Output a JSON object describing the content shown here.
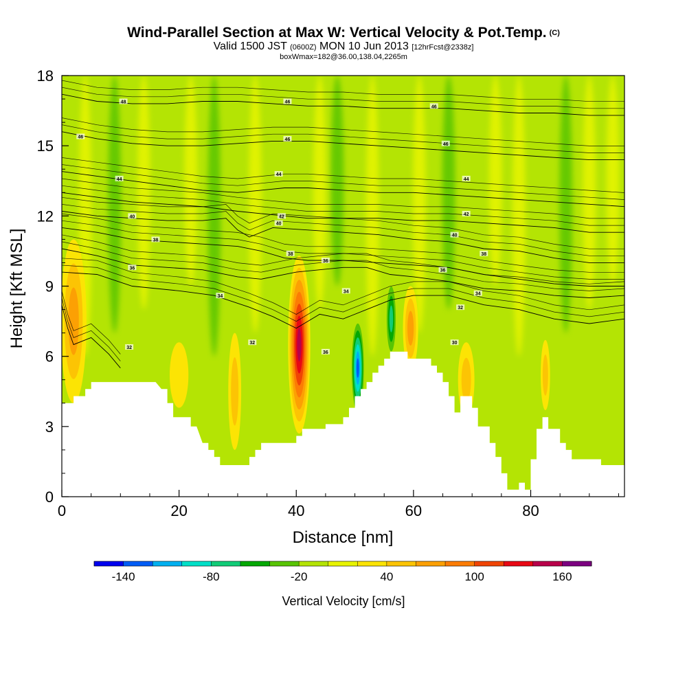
{
  "title": {
    "main": "Wind-Parallel Section at Max W: Vertical Velocity & Pot.Temp.",
    "mark": "(C)",
    "valid": "Valid 1500 JST",
    "valid_utc": "(0600Z)",
    "valid_date": "MON 10 Jun 2013",
    "forecast": "[12hrFcst@2338z]",
    "box": "boxWmax=182@36.00,138.04,2265m"
  },
  "chart_data": {
    "type": "heatmap",
    "xlabel": "Distance [nm]",
    "ylabel": "Height [Kft MSL]",
    "xlim": [
      0,
      96
    ],
    "ylim": [
      0,
      18
    ],
    "x_ticks": [
      0,
      20,
      40,
      60,
      80
    ],
    "y_ticks": [
      0,
      3,
      6,
      9,
      12,
      15,
      18
    ],
    "terrain": [
      [
        0,
        4
      ],
      [
        1,
        4
      ],
      [
        2,
        4
      ],
      [
        2,
        4.3
      ],
      [
        4,
        4.3
      ],
      [
        4,
        4.6
      ],
      [
        5,
        4.6
      ],
      [
        5,
        4.9
      ],
      [
        16,
        4.9
      ],
      [
        17,
        4.6
      ],
      [
        18,
        4.6
      ],
      [
        18,
        4.0
      ],
      [
        19,
        4.0
      ],
      [
        19,
        3.4
      ],
      [
        22,
        3.4
      ],
      [
        22,
        3.0
      ],
      [
        23,
        3.0
      ],
      [
        24,
        2.3
      ],
      [
        25,
        2.3
      ],
      [
        25,
        2.0
      ],
      [
        26,
        2.0
      ],
      [
        26,
        1.7
      ],
      [
        27,
        1.7
      ],
      [
        27,
        1.35
      ],
      [
        31,
        1.35
      ],
      [
        32,
        1.35
      ],
      [
        32,
        1.7
      ],
      [
        33,
        1.7
      ],
      [
        33,
        2.0
      ],
      [
        34,
        2.0
      ],
      [
        34,
        2.3
      ],
      [
        38,
        2.3
      ],
      [
        39,
        2.3
      ],
      [
        40,
        2.3
      ],
      [
        40,
        2.6
      ],
      [
        41,
        2.6
      ],
      [
        41,
        2.9
      ],
      [
        43,
        2.9
      ],
      [
        45,
        2.9
      ],
      [
        45,
        3.1
      ],
      [
        48,
        3.1
      ],
      [
        48,
        3.4
      ],
      [
        49,
        3.4
      ],
      [
        49,
        3.8
      ],
      [
        50,
        3.8
      ],
      [
        50,
        4.3
      ],
      [
        51,
        4.3
      ],
      [
        51,
        4.6
      ],
      [
        52,
        4.6
      ],
      [
        52,
        4.9
      ],
      [
        53,
        4.9
      ],
      [
        53,
        5.3
      ],
      [
        54,
        5.3
      ],
      [
        54,
        5.6
      ],
      [
        55,
        5.6
      ],
      [
        55,
        5.9
      ],
      [
        56,
        5.9
      ],
      [
        56,
        6.2
      ],
      [
        59,
        6.2
      ],
      [
        59,
        5.9
      ],
      [
        63,
        5.9
      ],
      [
        63,
        5.6
      ],
      [
        64,
        5.6
      ],
      [
        64,
        5.3
      ],
      [
        65,
        5.3
      ],
      [
        65,
        4.9
      ],
      [
        66,
        4.9
      ],
      [
        66,
        4.3
      ],
      [
        67,
        4.3
      ],
      [
        67,
        3.6
      ],
      [
        68,
        3.6
      ],
      [
        68,
        4.3
      ],
      [
        70,
        4.3
      ],
      [
        70,
        3.8
      ],
      [
        71,
        3.8
      ],
      [
        71,
        3.0
      ],
      [
        73,
        3.0
      ],
      [
        73,
        2.3
      ],
      [
        74,
        2.3
      ],
      [
        74,
        1.7
      ],
      [
        75,
        1.7
      ],
      [
        75,
        1.0
      ],
      [
        76,
        1.0
      ],
      [
        76,
        0.3
      ],
      [
        78,
        0.3
      ],
      [
        78,
        0.6
      ],
      [
        79,
        0.6
      ],
      [
        79,
        0.3
      ],
      [
        80,
        0.3
      ],
      [
        80,
        1.6
      ],
      [
        81,
        1.6
      ],
      [
        81,
        2.9
      ],
      [
        82,
        2.9
      ],
      [
        82,
        3.4
      ],
      [
        83,
        3.4
      ],
      [
        83,
        2.9
      ],
      [
        85,
        2.9
      ],
      [
        85,
        2.3
      ],
      [
        86,
        2.3
      ],
      [
        86,
        2.0
      ],
      [
        87,
        2.0
      ],
      [
        87,
        1.6
      ],
      [
        92,
        1.6
      ],
      [
        92,
        1.35
      ],
      [
        96,
        1.35
      ],
      [
        96,
        0
      ]
    ],
    "updrafts": [
      {
        "x": 2,
        "y": 7.5,
        "rx": 2.2,
        "ry": 3.5,
        "w": 70
      },
      {
        "x": 40.5,
        "y": 6.5,
        "rx": 1.9,
        "ry": 3.8,
        "w": 150
      },
      {
        "x": 59.5,
        "y": 7.2,
        "rx": 1.3,
        "ry": 1.8,
        "w": 60
      },
      {
        "x": 69,
        "y": 5.0,
        "rx": 1.4,
        "ry": 1.6,
        "w": 45
      },
      {
        "x": 82.5,
        "y": 5.2,
        "rx": 0.8,
        "ry": 1.5,
        "w": 50
      },
      {
        "x": 29.5,
        "y": 4.5,
        "rx": 1.1,
        "ry": 2.5,
        "w": 40
      },
      {
        "x": 20,
        "y": 5.2,
        "rx": 1.6,
        "ry": 1.4,
        "w": 30
      }
    ],
    "downdrafts": [
      {
        "x": 50.5,
        "y": 5.5,
        "rx": 1.2,
        "ry": 2.2,
        "w": -140
      },
      {
        "x": 56.2,
        "y": 7.6,
        "rx": 1.0,
        "ry": 1.8,
        "w": -80
      },
      {
        "x": 83,
        "y": 7.5,
        "rx": 0.7,
        "ry": 1.0,
        "w": -30
      },
      {
        "x": 37.2,
        "y": 5.2,
        "rx": 1.2,
        "ry": 2.6,
        "w": -25
      },
      {
        "x": 39.6,
        "y": 10.3,
        "rx": 0.5,
        "ry": 0.8,
        "w": -25
      }
    ],
    "isentropes": [
      {
        "label": "32",
        "pts": [
          [
            0,
            8.2
          ],
          [
            1,
            7.2
          ],
          [
            2,
            6.5
          ],
          [
            5,
            6.8
          ],
          [
            8,
            6.1
          ],
          [
            10,
            5.5
          ]
        ],
        "lx": 11.5,
        "ly": 6.4
      },
      {
        "label": "34",
        "pts": [
          [
            0,
            9.6
          ],
          [
            6,
            9.5
          ],
          [
            12,
            9.0
          ],
          [
            20,
            8.8
          ],
          [
            26,
            8.6
          ],
          [
            32,
            8.1
          ],
          [
            36,
            7.7
          ],
          [
            40,
            7.2
          ],
          [
            44,
            7.8
          ],
          [
            48,
            7.6
          ],
          [
            52,
            8.0
          ],
          [
            56,
            8.4
          ],
          [
            60,
            8.6
          ],
          [
            66,
            8.6
          ],
          [
            72,
            8.2
          ],
          [
            78,
            8.0
          ],
          [
            84,
            7.6
          ],
          [
            90,
            7.4
          ],
          [
            96,
            7.6
          ]
        ],
        "lx": 27,
        "ly": 8.6
      },
      {
        "label": "36",
        "pts": [
          [
            0,
            10.6
          ],
          [
            6,
            10.3
          ],
          [
            12,
            9.9
          ],
          [
            18,
            9.8
          ],
          [
            24,
            9.7
          ],
          [
            30,
            9.4
          ],
          [
            34,
            9.3
          ],
          [
            40,
            9.6
          ],
          [
            44,
            9.7
          ],
          [
            48,
            9.8
          ],
          [
            52,
            9.8
          ],
          [
            56,
            9.5
          ],
          [
            60,
            9.4
          ],
          [
            66,
            9.2
          ],
          [
            72,
            8.9
          ],
          [
            78,
            8.8
          ],
          [
            84,
            8.6
          ],
          [
            90,
            8.5
          ],
          [
            96,
            8.6
          ]
        ],
        "lx": 12,
        "ly": 9.8
      },
      {
        "label": "38",
        "pts": [
          [
            0,
            11.5
          ],
          [
            6,
            11.3
          ],
          [
            12,
            11.0
          ],
          [
            18,
            10.9
          ],
          [
            24,
            10.8
          ],
          [
            30,
            10.7
          ],
          [
            34,
            10.5
          ],
          [
            38,
            10.2
          ],
          [
            42,
            10.1
          ],
          [
            48,
            10.1
          ],
          [
            54,
            10.0
          ],
          [
            60,
            9.9
          ],
          [
            66,
            9.8
          ],
          [
            72,
            9.5
          ],
          [
            78,
            9.3
          ],
          [
            84,
            9.1
          ],
          [
            90,
            9.0
          ],
          [
            96,
            9.0
          ]
        ],
        "lx": 16,
        "ly": 11.0
      },
      {
        "label": "40",
        "pts": [
          [
            0,
            12.2
          ],
          [
            6,
            12.0
          ],
          [
            12,
            11.9
          ],
          [
            18,
            11.8
          ],
          [
            24,
            11.8
          ],
          [
            28,
            11.9
          ],
          [
            30,
            11.4
          ],
          [
            32,
            11.1
          ],
          [
            36,
            11.5
          ],
          [
            42,
            11.4
          ],
          [
            48,
            11.3
          ],
          [
            54,
            11.2
          ],
          [
            60,
            11.0
          ],
          [
            66,
            10.9
          ],
          [
            72,
            10.6
          ],
          [
            78,
            10.5
          ],
          [
            84,
            10.2
          ],
          [
            90,
            10.0
          ],
          [
            96,
            10.0
          ]
        ],
        "lx": 12,
        "ly": 12.0
      },
      {
        "label": "42",
        "pts": [
          [
            0,
            13.0
          ],
          [
            6,
            12.8
          ],
          [
            12,
            12.6
          ],
          [
            18,
            12.5
          ],
          [
            24,
            12.4
          ],
          [
            30,
            12.2
          ],
          [
            34,
            12.1
          ],
          [
            38,
            12.0
          ],
          [
            42,
            11.9
          ],
          [
            48,
            11.9
          ],
          [
            54,
            11.9
          ],
          [
            60,
            11.8
          ],
          [
            66,
            11.8
          ],
          [
            72,
            11.7
          ],
          [
            78,
            11.6
          ],
          [
            84,
            11.5
          ],
          [
            90,
            11.3
          ],
          [
            96,
            11.3
          ]
        ],
        "lx": 37.5,
        "ly": 12.0
      },
      {
        "label": "44",
        "pts": [
          [
            0,
            13.9
          ],
          [
            6,
            13.7
          ],
          [
            12,
            13.5
          ],
          [
            18,
            13.3
          ],
          [
            24,
            13.1
          ],
          [
            30,
            13.0
          ],
          [
            34,
            13.1
          ],
          [
            38,
            13.2
          ],
          [
            42,
            13.2
          ],
          [
            48,
            13.1
          ],
          [
            54,
            13.0
          ],
          [
            60,
            13.0
          ],
          [
            66,
            12.9
          ],
          [
            72,
            12.8
          ],
          [
            78,
            12.7
          ],
          [
            84,
            12.6
          ],
          [
            90,
            12.5
          ],
          [
            96,
            12.4
          ]
        ],
        "lx": 9.8,
        "ly": 13.6
      },
      {
        "label": "46",
        "pts": [
          [
            0,
            15.6
          ],
          [
            6,
            15.3
          ],
          [
            12,
            15.1
          ],
          [
            18,
            15.0
          ],
          [
            24,
            15.0
          ],
          [
            30,
            15.1
          ],
          [
            36,
            15.2
          ],
          [
            42,
            15.2
          ],
          [
            48,
            15.1
          ],
          [
            54,
            15.0
          ],
          [
            60,
            14.9
          ],
          [
            66,
            14.8
          ],
          [
            72,
            14.7
          ],
          [
            78,
            14.6
          ],
          [
            84,
            14.5
          ],
          [
            90,
            14.4
          ],
          [
            96,
            14.4
          ]
        ],
        "lx": 3.2,
        "ly": 15.4
      },
      {
        "label": "48",
        "pts": [
          [
            0,
            17.2
          ],
          [
            6,
            16.9
          ],
          [
            12,
            16.8
          ],
          [
            18,
            16.8
          ],
          [
            24,
            16.9
          ],
          [
            30,
            16.9
          ],
          [
            36,
            16.8
          ],
          [
            42,
            16.7
          ],
          [
            48,
            16.7
          ],
          [
            54,
            16.6
          ],
          [
            60,
            16.6
          ],
          [
            66,
            16.6
          ],
          [
            72,
            16.5
          ],
          [
            78,
            16.4
          ],
          [
            84,
            16.4
          ],
          [
            90,
            16.3
          ],
          [
            96,
            16.3
          ]
        ],
        "lx": 10.5,
        "ly": 16.9
      }
    ],
    "inline_labels": [
      {
        "label": "44",
        "x": 37,
        "y": 13.8
      },
      {
        "label": "40",
        "x": 37,
        "y": 11.7
      },
      {
        "label": "38",
        "x": 39,
        "y": 10.4
      },
      {
        "label": "36",
        "x": 45,
        "y": 10.1
      },
      {
        "label": "34",
        "x": 48.5,
        "y": 8.8
      },
      {
        "label": "36",
        "x": 45,
        "y": 6.2
      },
      {
        "label": "32",
        "x": 32.5,
        "y": 6.6
      },
      {
        "label": "46",
        "x": 38.5,
        "y": 16.9
      },
      {
        "label": "46",
        "x": 38.5,
        "y": 15.3
      },
      {
        "label": "46",
        "x": 63.5,
        "y": 16.7
      },
      {
        "label": "46",
        "x": 65.5,
        "y": 15.1
      },
      {
        "label": "44",
        "x": 69,
        "y": 13.6
      },
      {
        "label": "42",
        "x": 69,
        "y": 12.1
      },
      {
        "label": "40",
        "x": 67,
        "y": 11.2
      },
      {
        "label": "38",
        "x": 72,
        "y": 10.4
      },
      {
        "label": "36",
        "x": 65,
        "y": 9.7
      },
      {
        "label": "34",
        "x": 71,
        "y": 8.7
      },
      {
        "label": "32",
        "x": 68,
        "y": 8.1
      },
      {
        "label": "30",
        "x": 67,
        "y": 6.6
      }
    ],
    "colorbar": {
      "label": "Vertical Velocity [cm/s]",
      "ticks": [
        -140,
        -80,
        -20,
        40,
        100,
        160
      ],
      "bins": [
        -160,
        -140,
        -120,
        -100,
        -80,
        -60,
        -40,
        -20,
        0,
        20,
        40,
        60,
        80,
        100,
        120,
        140,
        160,
        180
      ],
      "colors": [
        "#0000ee",
        "#005cf5",
        "#00b0f0",
        "#00e0c8",
        "#11cc77",
        "#04a804",
        "#58c404",
        "#b4e404",
        "#e8f400",
        "#fce404",
        "#fcc404",
        "#fca004",
        "#fc7c04",
        "#f04404",
        "#e80814",
        "#b8004a",
        "#7c0080"
      ]
    }
  }
}
